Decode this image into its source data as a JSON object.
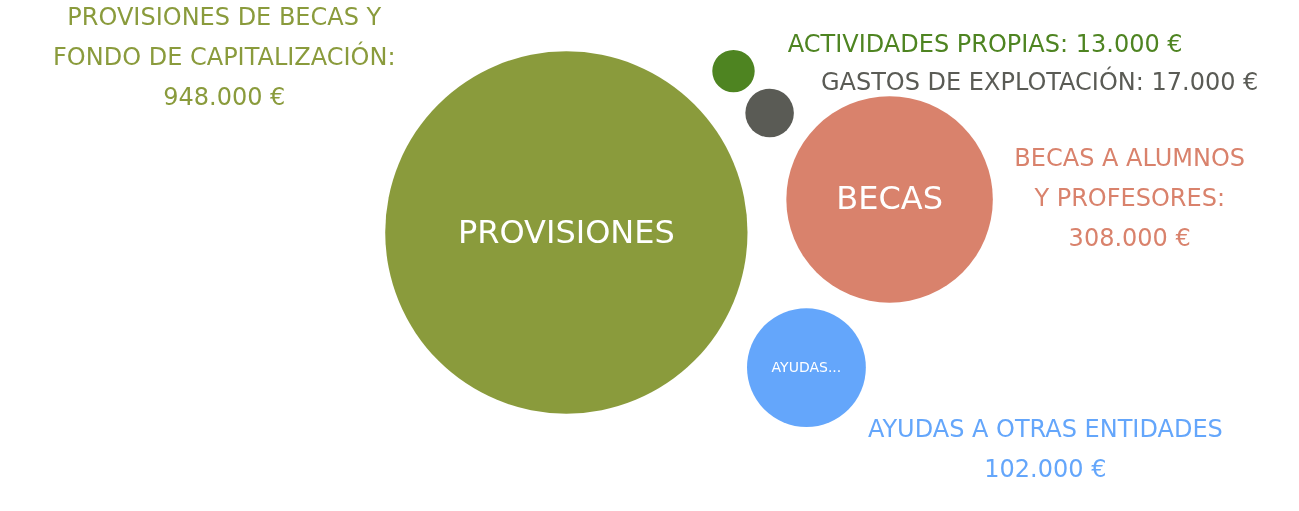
{
  "chart_data": {
    "type": "other",
    "categories": [
      "PROVISIONES",
      null,
      null,
      "BECAS",
      "AYUDAS..."
    ],
    "values": [
      948000,
      13000,
      17000,
      308000,
      102000
    ],
    "colors": [
      "#8a9b3c",
      "#4e8421",
      "#5a5b55",
      "#d9826c",
      "#64a6fb"
    ],
    "value_labels": [
      "PROVISIONES DE BECAS Y FONDO DE CAPITALIZACIÓN: 948.000 €",
      "ACTIVIDADES PROPIAS: 13.000 €",
      "GASTOS DE EXPLOTACIÓN: 17.000 €",
      "BECAS A ALUMNOS Y PROFESORES: 308.000 €",
      "AYUDAS A OTRAS ENTIDADES 102.000 €"
    ]
  }
}
